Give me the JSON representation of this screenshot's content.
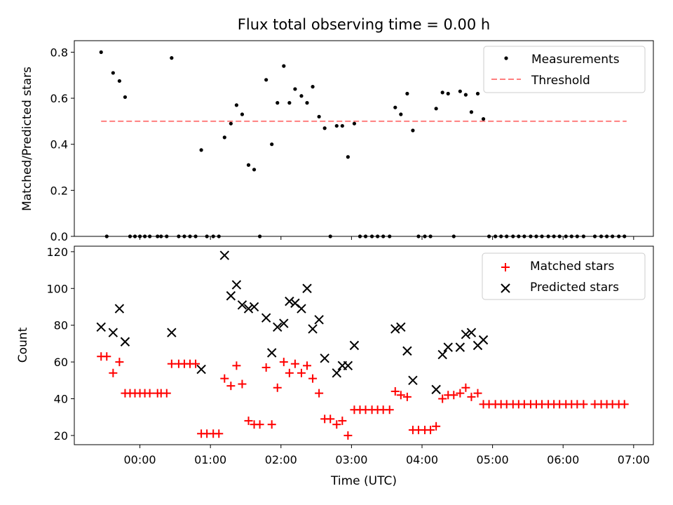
{
  "colors": {
    "measurement": "#000000",
    "threshold": "#ff7f7f",
    "matched": "#ff0000",
    "predicted": "#000000"
  },
  "chart_data": [
    {
      "type": "scatter",
      "title": "Flux total observing time = 0.00 h",
      "xlabel": "",
      "ylabel": "Matched/Predicted stars",
      "xlim_hours": [
        -0.93,
        7.28
      ],
      "ylim": [
        0,
        0.85
      ],
      "yticks": [
        0.0,
        0.2,
        0.4,
        0.6,
        0.8
      ],
      "ytick_labels": [
        "0.0",
        "0.2",
        "0.4",
        "0.6",
        "0.8"
      ],
      "legend_position": "top-right",
      "legend": [
        "Measurements",
        "Threshold"
      ],
      "threshold": {
        "name": "Threshold",
        "y": 0.5,
        "x_start_hours": -0.55,
        "x_end_hours": 6.9
      },
      "series": [
        {
          "name": "Measurements",
          "points": [
            [
              -0.55,
              0.8
            ],
            [
              -0.47,
              0.0
            ],
            [
              -0.38,
              0.71
            ],
            [
              -0.29,
              0.675
            ],
            [
              -0.21,
              0.605
            ],
            [
              -0.14,
              0.0
            ],
            [
              -0.07,
              0.0
            ],
            [
              0.0,
              0.0
            ],
            [
              0.07,
              0.0
            ],
            [
              0.14,
              0.0
            ],
            [
              0.25,
              0.0
            ],
            [
              0.3,
              0.0
            ],
            [
              0.38,
              0.0
            ],
            [
              0.45,
              0.775
            ],
            [
              0.55,
              0.0
            ],
            [
              0.63,
              0.0
            ],
            [
              0.71,
              0.0
            ],
            [
              0.79,
              0.0
            ],
            [
              0.87,
              0.375
            ],
            [
              0.95,
              0.0
            ],
            [
              1.04,
              0.0
            ],
            [
              1.12,
              0.0
            ],
            [
              1.2,
              0.43
            ],
            [
              1.29,
              0.49
            ],
            [
              1.37,
              0.57
            ],
            [
              1.45,
              0.53
            ],
            [
              1.54,
              0.31
            ],
            [
              1.62,
              0.29
            ],
            [
              1.7,
              0.0
            ],
            [
              1.79,
              0.68
            ],
            [
              1.87,
              0.4
            ],
            [
              1.95,
              0.58
            ],
            [
              2.04,
              0.74
            ],
            [
              2.12,
              0.58
            ],
            [
              2.2,
              0.64
            ],
            [
              2.29,
              0.61
            ],
            [
              2.37,
              0.58
            ],
            [
              2.45,
              0.65
            ],
            [
              2.54,
              0.52
            ],
            [
              2.62,
              0.47
            ],
            [
              2.7,
              0.0
            ],
            [
              2.79,
              0.48
            ],
            [
              2.87,
              0.48
            ],
            [
              2.95,
              0.345
            ],
            [
              3.04,
              0.49
            ],
            [
              3.12,
              0.0
            ],
            [
              3.2,
              0.0
            ],
            [
              3.29,
              0.0
            ],
            [
              3.37,
              0.0
            ],
            [
              3.45,
              0.0
            ],
            [
              3.54,
              0.0
            ],
            [
              3.62,
              0.56
            ],
            [
              3.7,
              0.53
            ],
            [
              3.79,
              0.62
            ],
            [
              3.87,
              0.46
            ],
            [
              3.95,
              0.0
            ],
            [
              4.04,
              0.0
            ],
            [
              4.12,
              0.0
            ],
            [
              4.2,
              0.555
            ],
            [
              4.29,
              0.625
            ],
            [
              4.37,
              0.62
            ],
            [
              4.45,
              0.0
            ],
            [
              4.54,
              0.63
            ],
            [
              4.62,
              0.615
            ],
            [
              4.7,
              0.54
            ],
            [
              4.79,
              0.62
            ],
            [
              4.87,
              0.51
            ],
            [
              4.95,
              0.0
            ],
            [
              5.04,
              0.0
            ],
            [
              5.12,
              0.0
            ],
            [
              5.2,
              0.0
            ],
            [
              5.29,
              0.0
            ],
            [
              5.37,
              0.0
            ],
            [
              5.45,
              0.0
            ],
            [
              5.54,
              0.0
            ],
            [
              5.62,
              0.0
            ],
            [
              5.7,
              0.0
            ],
            [
              5.79,
              0.0
            ],
            [
              5.87,
              0.0
            ],
            [
              5.95,
              0.0
            ],
            [
              6.04,
              0.0
            ],
            [
              6.12,
              0.0
            ],
            [
              6.2,
              0.0
            ],
            [
              6.29,
              0.0
            ],
            [
              6.45,
              0.0
            ],
            [
              6.54,
              0.0
            ],
            [
              6.62,
              0.0
            ],
            [
              6.7,
              0.0
            ],
            [
              6.79,
              0.0
            ],
            [
              6.87,
              0.0
            ]
          ]
        }
      ]
    },
    {
      "type": "scatter",
      "title": "",
      "xlabel": "Time (UTC)",
      "ylabel": "Count",
      "xlim_hours": [
        -0.93,
        7.28
      ],
      "ylim": [
        15,
        123
      ],
      "yticks": [
        20,
        40,
        60,
        80,
        100,
        120
      ],
      "ytick_labels": [
        "20",
        "40",
        "60",
        "80",
        "100",
        "120"
      ],
      "xticks_hours": [
        0,
        1,
        2,
        3,
        4,
        5,
        6,
        7
      ],
      "xtick_labels": [
        "00:00",
        "01:00",
        "02:00",
        "03:00",
        "04:00",
        "05:00",
        "06:00",
        "07:00"
      ],
      "legend_position": "top-right",
      "legend": [
        "Matched stars",
        "Predicted stars"
      ],
      "series": [
        {
          "name": "Matched stars",
          "marker": "+",
          "points": [
            [
              -0.55,
              63
            ],
            [
              -0.47,
              63
            ],
            [
              -0.38,
              54
            ],
            [
              -0.29,
              60
            ],
            [
              -0.21,
              43
            ],
            [
              -0.14,
              43
            ],
            [
              -0.07,
              43
            ],
            [
              0.0,
              43
            ],
            [
              0.07,
              43
            ],
            [
              0.14,
              43
            ],
            [
              0.25,
              43
            ],
            [
              0.3,
              43
            ],
            [
              0.38,
              43
            ],
            [
              0.45,
              59
            ],
            [
              0.55,
              59
            ],
            [
              0.63,
              59
            ],
            [
              0.71,
              59
            ],
            [
              0.79,
              59
            ],
            [
              0.87,
              21
            ],
            [
              0.95,
              21
            ],
            [
              1.04,
              21
            ],
            [
              1.12,
              21
            ],
            [
              1.2,
              51
            ],
            [
              1.29,
              47
            ],
            [
              1.37,
              58
            ],
            [
              1.45,
              48
            ],
            [
              1.54,
              28
            ],
            [
              1.62,
              26
            ],
            [
              1.7,
              26
            ],
            [
              1.79,
              57
            ],
            [
              1.87,
              26
            ],
            [
              1.95,
              46
            ],
            [
              2.04,
              60
            ],
            [
              2.12,
              54
            ],
            [
              2.2,
              59
            ],
            [
              2.29,
              54
            ],
            [
              2.37,
              58
            ],
            [
              2.45,
              51
            ],
            [
              2.54,
              43
            ],
            [
              2.62,
              29
            ],
            [
              2.7,
              29
            ],
            [
              2.79,
              26
            ],
            [
              2.87,
              28
            ],
            [
              2.95,
              20
            ],
            [
              3.04,
              34
            ],
            [
              3.12,
              34
            ],
            [
              3.2,
              34
            ],
            [
              3.29,
              34
            ],
            [
              3.37,
              34
            ],
            [
              3.45,
              34
            ],
            [
              3.54,
              34
            ],
            [
              3.62,
              44
            ],
            [
              3.7,
              42
            ],
            [
              3.79,
              41
            ],
            [
              3.87,
              23
            ],
            [
              3.95,
              23
            ],
            [
              4.04,
              23
            ],
            [
              4.12,
              23
            ],
            [
              4.2,
              25
            ],
            [
              4.29,
              40
            ],
            [
              4.37,
              42
            ],
            [
              4.45,
              42
            ],
            [
              4.54,
              43
            ],
            [
              4.62,
              46
            ],
            [
              4.7,
              41
            ],
            [
              4.79,
              43
            ],
            [
              4.87,
              37
            ],
            [
              4.95,
              37
            ],
            [
              5.04,
              37
            ],
            [
              5.12,
              37
            ],
            [
              5.2,
              37
            ],
            [
              5.29,
              37
            ],
            [
              5.37,
              37
            ],
            [
              5.45,
              37
            ],
            [
              5.54,
              37
            ],
            [
              5.62,
              37
            ],
            [
              5.7,
              37
            ],
            [
              5.79,
              37
            ],
            [
              5.87,
              37
            ],
            [
              5.95,
              37
            ],
            [
              6.04,
              37
            ],
            [
              6.12,
              37
            ],
            [
              6.2,
              37
            ],
            [
              6.29,
              37
            ],
            [
              6.45,
              37
            ],
            [
              6.54,
              37
            ],
            [
              6.62,
              37
            ],
            [
              6.7,
              37
            ],
            [
              6.79,
              37
            ],
            [
              6.87,
              37
            ]
          ]
        },
        {
          "name": "Predicted stars",
          "marker": "x",
          "points": [
            [
              -0.55,
              79
            ],
            [
              -0.38,
              76
            ],
            [
              -0.29,
              89
            ],
            [
              -0.21,
              71
            ],
            [
              0.45,
              76
            ],
            [
              0.87,
              56
            ],
            [
              1.2,
              118
            ],
            [
              1.29,
              96
            ],
            [
              1.37,
              102
            ],
            [
              1.45,
              91
            ],
            [
              1.54,
              89
            ],
            [
              1.62,
              90
            ],
            [
              1.79,
              84
            ],
            [
              1.87,
              65
            ],
            [
              1.95,
              79
            ],
            [
              2.04,
              81
            ],
            [
              2.12,
              93
            ],
            [
              2.2,
              92
            ],
            [
              2.29,
              89
            ],
            [
              2.37,
              100
            ],
            [
              2.45,
              78
            ],
            [
              2.54,
              83
            ],
            [
              2.62,
              62
            ],
            [
              2.79,
              54
            ],
            [
              2.87,
              58
            ],
            [
              2.95,
              58
            ],
            [
              3.04,
              69
            ],
            [
              3.62,
              78
            ],
            [
              3.7,
              79
            ],
            [
              3.79,
              66
            ],
            [
              3.87,
              50
            ],
            [
              4.2,
              45
            ],
            [
              4.29,
              64
            ],
            [
              4.37,
              68
            ],
            [
              4.54,
              68
            ],
            [
              4.62,
              75
            ],
            [
              4.7,
              76
            ],
            [
              4.79,
              69
            ],
            [
              4.87,
              72
            ]
          ]
        }
      ]
    }
  ]
}
